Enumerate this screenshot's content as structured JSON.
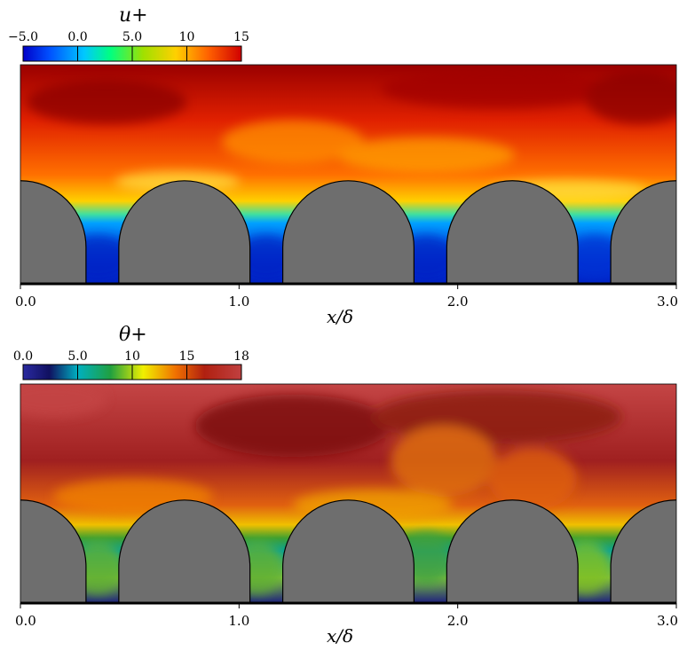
{
  "chart_data": [
    {
      "type": "heatmap",
      "colorbar": {
        "title": "u+",
        "ticks": [
          "−5.0",
          "0.0",
          "5.0",
          "10",
          "15"
        ],
        "range": [
          -5,
          15
        ],
        "colormap": "jet"
      },
      "xlabel": "x/δ",
      "x_ticks": [
        "0.0",
        "1.0",
        "2.0",
        "3.0"
      ],
      "xlim": [
        0,
        3
      ],
      "obstacles_x_centers": [
        0,
        0.75,
        1.5,
        2.25,
        3.0
      ]
    },
    {
      "type": "heatmap",
      "colorbar": {
        "title": "θ+",
        "ticks": [
          "0.0",
          "5.0",
          "10",
          "15",
          "18"
        ],
        "range": [
          0,
          18
        ],
        "colormap": "dark-blue-cyan-green-yellow-red"
      },
      "xlabel": "x/δ",
      "x_ticks": [
        "0.0",
        "1.0",
        "2.0",
        "3.0"
      ],
      "xlim": [
        0,
        3
      ],
      "obstacles_x_centers": [
        0,
        0.75,
        1.5,
        2.25,
        3.0
      ]
    }
  ]
}
